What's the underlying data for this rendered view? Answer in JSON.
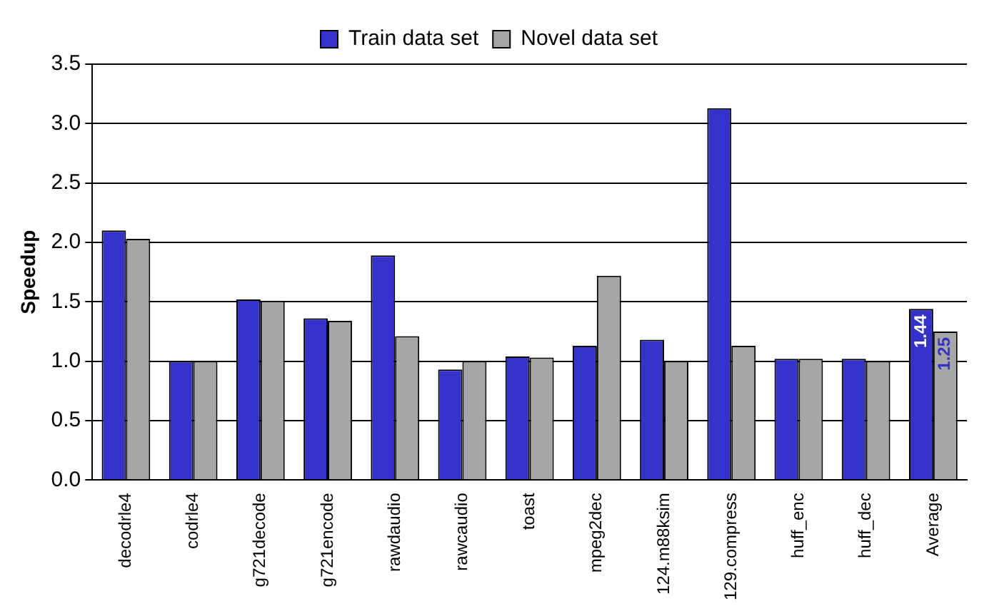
{
  "chart_data": {
    "type": "bar",
    "ylabel": "Speedup",
    "categories": [
      "decodrle4",
      "codrle4",
      "g721decode",
      "g721encode",
      "rawdaudio",
      "rawcaudio",
      "toast",
      "mpeg2dec",
      "124.m88ksim",
      "129.compress",
      "huff_enc",
      "huff_dec",
      "Average"
    ],
    "series": [
      {
        "name": "Train data set",
        "color": "#3333cc",
        "values": [
          2.1,
          1.0,
          1.52,
          1.36,
          1.89,
          0.93,
          1.04,
          1.13,
          1.18,
          3.13,
          1.02,
          1.02,
          1.44
        ],
        "value_labels": [
          null,
          null,
          null,
          null,
          null,
          null,
          null,
          null,
          null,
          null,
          null,
          null,
          "1.44"
        ]
      },
      {
        "name": "Novel data set",
        "color": "#a6a6a6",
        "values": [
          2.03,
          1.0,
          1.51,
          1.34,
          1.21,
          1.0,
          1.03,
          1.72,
          1.0,
          1.13,
          1.02,
          1.0,
          1.25
        ],
        "value_labels": [
          null,
          null,
          null,
          null,
          null,
          null,
          null,
          null,
          null,
          null,
          null,
          null,
          "1.25"
        ]
      }
    ],
    "ylim": [
      0,
      3.5
    ],
    "yticks": [
      {
        "value": 0,
        "label": "0.0"
      },
      0.5,
      {
        "value": 1,
        "label": "1.0"
      },
      1.5,
      {
        "value": 2,
        "label": "2.0"
      },
      2.5,
      {
        "value": 3,
        "label": "3.0"
      },
      3.5
    ],
    "grid": "y",
    "legend": "top"
  }
}
